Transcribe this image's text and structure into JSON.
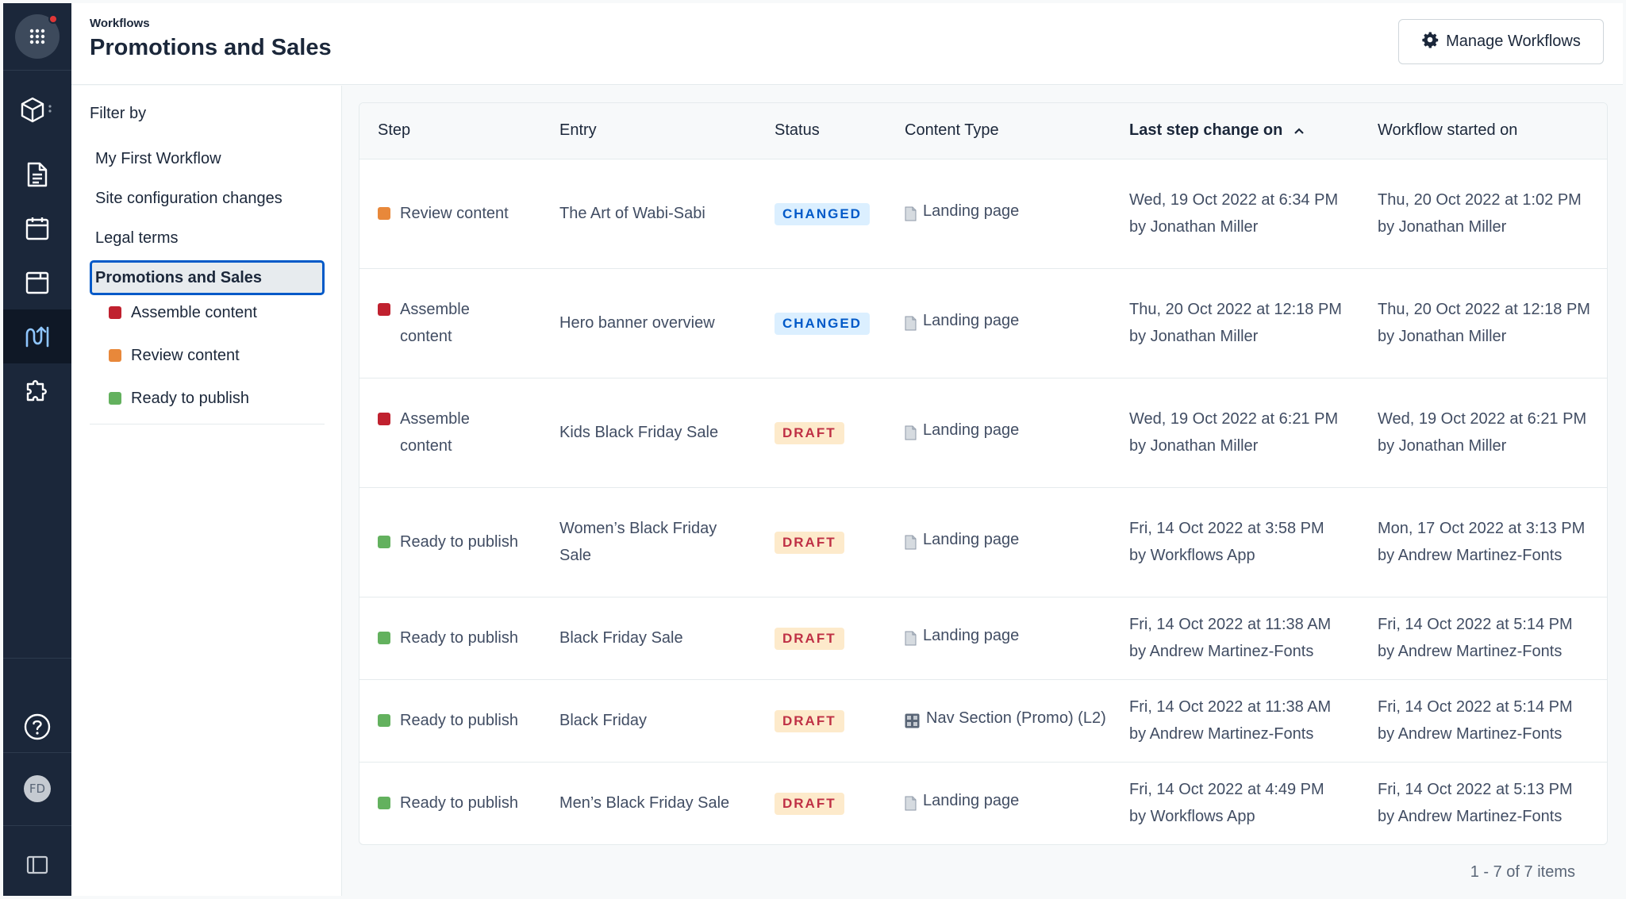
{
  "header": {
    "breadcrumb": "Workflows",
    "title": "Promotions and Sales",
    "manage_button": "Manage Workflows"
  },
  "rail": {
    "avatar_initials": "FD",
    "icons": [
      "apps-icon",
      "content-model-icon",
      "content-icon",
      "calendar-icon",
      "media-icon",
      "workflows-icon",
      "apps-puzzle-icon",
      "help-icon",
      "avatar",
      "sidebar-toggle-icon"
    ]
  },
  "sidebar": {
    "filter_label": "Filter by",
    "workflows": [
      {
        "label": "My First Workflow"
      },
      {
        "label": "Site configuration changes"
      },
      {
        "label": "Legal terms"
      },
      {
        "label": "Promotions and Sales",
        "selected": true
      }
    ],
    "steps": [
      {
        "label": "Assemble content",
        "color": "#c0212f"
      },
      {
        "label": "Review content",
        "color": "#e8883a"
      },
      {
        "label": "Ready to publish",
        "color": "#63b15e"
      }
    ]
  },
  "table": {
    "columns": [
      "Step",
      "Entry",
      "Status",
      "Content Type",
      "Last step change on",
      "Workflow started on"
    ],
    "sorted_column": "Last step change on",
    "rows": [
      {
        "step": "Review content",
        "step_color": "#e8883a",
        "entry": "The Art of Wabi-Sabi",
        "status": "CHANGED",
        "status_kind": "changed",
        "content_type": "Landing page",
        "content_icon": "page-icon",
        "last_change": "Wed, 19 Oct 2022 at 6:34 PM",
        "last_change_by": "by Jonathan Miller",
        "started": "Thu, 20 Oct 2022 at 1:02 PM",
        "started_by": "by Jonathan Miller"
      },
      {
        "step": "Assemble content",
        "step_color": "#c0212f",
        "entry": "Hero banner overview",
        "status": "CHANGED",
        "status_kind": "changed",
        "content_type": "Landing page",
        "content_icon": "page-icon",
        "last_change": "Thu, 20 Oct 2022 at 12:18 PM",
        "last_change_by": "by Jonathan Miller",
        "started": "Thu, 20 Oct 2022 at 12:18 PM",
        "started_by": "by Jonathan Miller"
      },
      {
        "step": "Assemble content",
        "step_color": "#c0212f",
        "entry": "Kids Black Friday Sale",
        "status": "DRAFT",
        "status_kind": "draft",
        "content_type": "Landing page",
        "content_icon": "page-icon",
        "last_change": "Wed, 19 Oct 2022 at 6:21 PM",
        "last_change_by": "by Jonathan Miller",
        "started": "Wed, 19 Oct 2022 at 6:21 PM",
        "started_by": "by Jonathan Miller"
      },
      {
        "step": "Ready to publish",
        "step_color": "#63b15e",
        "entry": "Women’s Black Friday Sale",
        "status": "DRAFT",
        "status_kind": "draft",
        "content_type": "Landing page",
        "content_icon": "page-icon",
        "last_change": "Fri, 14 Oct 2022 at 3:58 PM",
        "last_change_by": "by Workflows App",
        "started": "Mon, 17 Oct 2022 at 3:13 PM",
        "started_by": "by Andrew Martinez-Fonts"
      },
      {
        "step": "Ready to publish",
        "step_color": "#63b15e",
        "entry": "Black Friday Sale",
        "status": "DRAFT",
        "status_kind": "draft",
        "content_type": "Landing page",
        "content_icon": "page-icon",
        "last_change": "Fri, 14 Oct 2022 at 11:38 AM",
        "last_change_by": "by Andrew Martinez-Fonts",
        "started": "Fri, 14 Oct 2022 at 5:14 PM",
        "started_by": "by Andrew Martinez-Fonts"
      },
      {
        "step": "Ready to publish",
        "step_color": "#63b15e",
        "entry": "Black Friday",
        "status": "DRAFT",
        "status_kind": "draft",
        "content_type": "Nav Section (Promo) (L2)",
        "content_icon": "grid-icon",
        "last_change": "Fri, 14 Oct 2022 at 11:38 AM",
        "last_change_by": "by Andrew Martinez-Fonts",
        "started": "Fri, 14 Oct 2022 at 5:14 PM",
        "started_by": "by Andrew Martinez-Fonts"
      },
      {
        "step": "Ready to publish",
        "step_color": "#63b15e",
        "entry": "Men’s Black Friday Sale",
        "status": "DRAFT",
        "status_kind": "draft",
        "content_type": "Landing page",
        "content_icon": "page-icon",
        "last_change": "Fri, 14 Oct 2022 at 4:49 PM",
        "last_change_by": "by Workflows App",
        "started": "Fri, 14 Oct 2022 at 5:13 PM",
        "started_by": "by Andrew Martinez-Fonts"
      }
    ]
  },
  "pager": {
    "text": "1 - 7 of 7 items"
  }
}
